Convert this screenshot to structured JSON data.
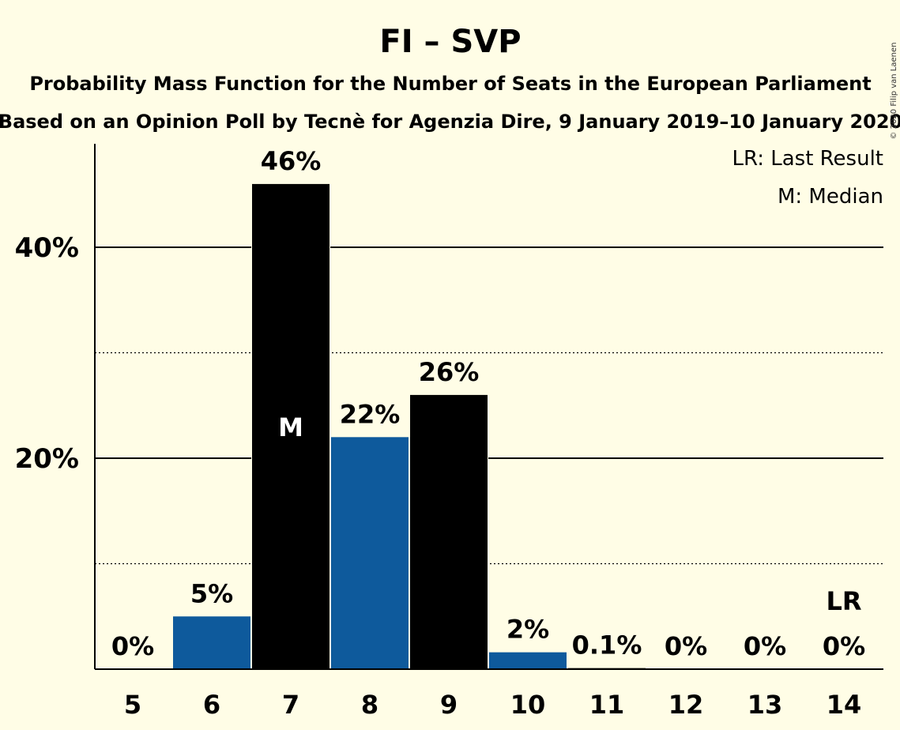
{
  "chart_data": {
    "type": "bar",
    "title": "FI – SVP",
    "subtitle_line1": "Probability Mass Function for the Number of Seats in the European Parliament",
    "subtitle_line2": "Based on an Opinion Poll by Tecnè for Agenzia Dire, 9 January 2019–10 January 2020",
    "copyright": "© 2020 Filip van Laenen",
    "legend": {
      "last_result": "LR: Last Result",
      "median": "M: Median"
    },
    "categories": [
      "5",
      "6",
      "7",
      "8",
      "9",
      "10",
      "11",
      "12",
      "13",
      "14"
    ],
    "values": [
      0,
      5,
      46,
      22,
      26,
      1.6,
      0.1,
      0,
      0,
      0
    ],
    "labels": [
      "0%",
      "5%",
      "46%",
      "22%",
      "26%",
      "2%",
      "0.1%",
      "0%",
      "0%",
      "0%"
    ],
    "ylim": [
      0,
      50
    ],
    "yticks": [
      {
        "value": 20,
        "label": "20%"
      },
      {
        "value": 40,
        "label": "40%"
      }
    ],
    "minor_gridlines": [
      10,
      30
    ],
    "median_index": 2,
    "median_marker": "M",
    "last_result_index": 9,
    "last_result_marker": "LR",
    "colors": {
      "blue": "#0e5a9c",
      "black": "#000000",
      "background": "#fffde6"
    }
  }
}
